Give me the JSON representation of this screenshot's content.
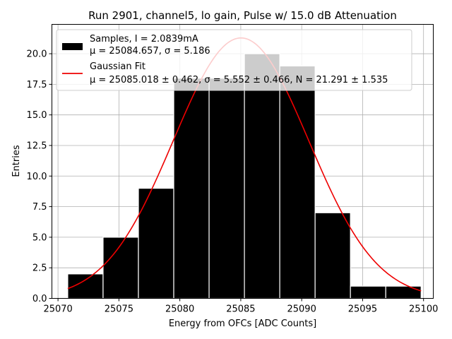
{
  "chart_data": {
    "type": "bar",
    "title": "Run 2901, channel5, lo gain, Pulse w/ 15.0 dB Attenuation",
    "xlabel": "Energy from OFCs [ADC Counts]",
    "ylabel": "Entries",
    "xlim": [
      25069.5,
      25100.8
    ],
    "ylim": [
      0,
      22.4
    ],
    "xticks": [
      25070,
      25075,
      25080,
      25085,
      25090,
      25095,
      25100
    ],
    "yticks": [
      0.0,
      2.5,
      5.0,
      7.5,
      10.0,
      12.5,
      15.0,
      17.5,
      20.0
    ],
    "grid": true,
    "bin_edges": [
      25070.8,
      25073.7,
      25076.6,
      25079.5,
      25082.4,
      25085.3,
      25088.2,
      25091.1,
      25094.0,
      25096.9,
      25099.8
    ],
    "bin_counts": [
      2,
      5,
      9,
      18,
      18,
      20,
      19,
      7,
      1,
      1
    ],
    "histogram_color": "#000000",
    "fit": {
      "mu": 25085.018,
      "sigma": 5.552,
      "N": 21.291,
      "x_range": [
        25070.8,
        25099.8
      ],
      "color": "#ee0000"
    },
    "legend": {
      "placement": "top-left",
      "entries": [
        {
          "name": "samples",
          "line1": "Samples, I = 2.0839mA",
          "line2_prefix": "μ = 25084.657, ",
          "line2_sigma": "σ = 5.186"
        },
        {
          "name": "gaussian-fit",
          "line1": "Gaussian Fit",
          "line2_prefix": "μ = 25085.018 ± 0.462, ",
          "line2_sigma": "σ = 5.552 ± 0.466, ",
          "line2_n": "N = 21.291 ± 1.535"
        }
      ]
    }
  }
}
